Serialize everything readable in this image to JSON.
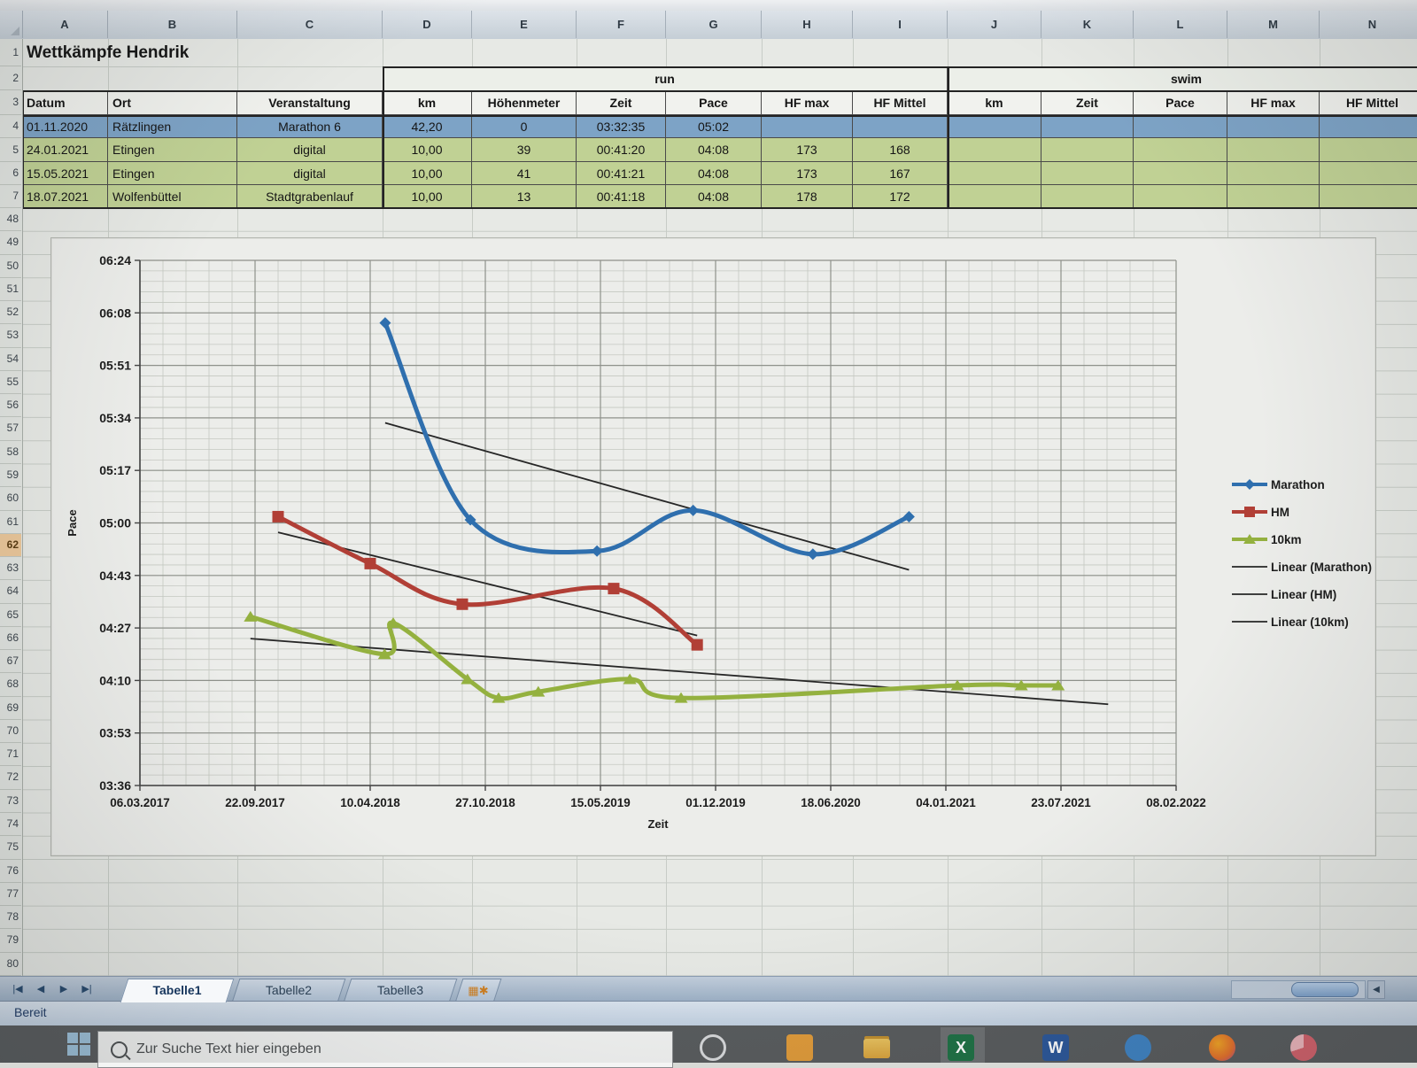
{
  "title": "Wettkämpfe Hendrik",
  "app": {
    "columns": [
      "A",
      "B",
      "C",
      "D",
      "E",
      "F",
      "G",
      "H",
      "I",
      "J",
      "K",
      "L",
      "M",
      "N"
    ],
    "row_numbers_top": [
      "1",
      "2",
      "3",
      "4",
      "5",
      "6",
      "7"
    ],
    "row_numbers_bottom": [
      "48",
      "49",
      "50",
      "51",
      "52",
      "53",
      "54",
      "55",
      "56",
      "57",
      "58",
      "59",
      "60",
      "61",
      "62",
      "63",
      "64",
      "65",
      "66",
      "67",
      "68",
      "69",
      "70",
      "71",
      "72",
      "73",
      "74",
      "75",
      "76",
      "77",
      "78",
      "79",
      "80"
    ],
    "active_row": "62",
    "sheet_tabs": [
      {
        "label": "Tabelle1",
        "active": true
      },
      {
        "label": "Tabelle2",
        "active": false
      },
      {
        "label": "Tabelle3",
        "active": false
      }
    ],
    "nav_buttons": [
      "|◀",
      "◀",
      "▶",
      "▶|"
    ],
    "scroll_left_glyph": "◀",
    "status": "Bereit"
  },
  "table": {
    "group_headers": {
      "run": "run",
      "swim": "swim"
    },
    "columns": [
      "Datum",
      "Ort",
      "Veranstaltung",
      "km",
      "Höhenmeter",
      "Zeit",
      "Pace",
      "HF max",
      "HF Mittel",
      "km",
      "Zeit",
      "Pace",
      "HF max",
      "HF Mittel"
    ],
    "rows": [
      {
        "color": "blue",
        "cells": [
          "01.11.2020",
          "Rätzlingen",
          "Marathon 6",
          "42,20",
          "0",
          "03:32:35",
          "05:02",
          "",
          "",
          "",
          "",
          "",
          "",
          ""
        ]
      },
      {
        "color": "green",
        "cells": [
          "24.01.2021",
          "Etingen",
          "digital",
          "10,00",
          "39",
          "00:41:20",
          "04:08",
          "173",
          "168",
          "",
          "",
          "",
          "",
          ""
        ]
      },
      {
        "color": "green",
        "cells": [
          "15.05.2021",
          "Etingen",
          "digital",
          "10,00",
          "41",
          "00:41:21",
          "04:08",
          "173",
          "167",
          "",
          "",
          "",
          "",
          ""
        ]
      },
      {
        "color": "green",
        "cells": [
          "18.07.2021",
          "Wolfenbüttel",
          "Stadtgrabenlauf",
          "10,00",
          "13",
          "00:41:18",
          "04:08",
          "178",
          "172",
          "",
          "",
          "",
          "",
          ""
        ]
      }
    ]
  },
  "chart_data": {
    "type": "line",
    "xlabel": "Zeit",
    "ylabel": "Pace",
    "x_tick_labels": [
      "06.03.2017",
      "22.09.2017",
      "10.04.2018",
      "27.10.2018",
      "15.05.2019",
      "01.12.2019",
      "18.06.2020",
      "04.01.2021",
      "23.07.2021",
      "08.02.2022"
    ],
    "y_tick_labels": [
      "06:24",
      "06:08",
      "05:51",
      "05:34",
      "05:17",
      "05:00",
      "04:43",
      "04:27",
      "04:10",
      "03:53",
      "03:36"
    ],
    "y_max_pace": "06:24",
    "y_min_pace": "03:36",
    "x_start_date": "06.03.2017",
    "x_end_date": "08.02.2022",
    "grid": "minor-and-major",
    "legend_position": "right",
    "series": [
      {
        "name": "Marathon",
        "color": "#2f6fae",
        "marker": "diamond",
        "smooth": true,
        "points": [
          {
            "date": "06.05.2018",
            "pace": "06:04"
          },
          {
            "date": "01.10.2018",
            "pace": "05:01"
          },
          {
            "date": "09.05.2019",
            "pace": "04:51"
          },
          {
            "date": "23.10.2019",
            "pace": "05:04"
          },
          {
            "date": "18.05.2020",
            "pace": "04:50"
          },
          {
            "date": "01.11.2020",
            "pace": "05:02"
          }
        ]
      },
      {
        "name": "HM",
        "color": "#b13f36",
        "marker": "square",
        "smooth": true,
        "points": [
          {
            "date": "01.11.2017",
            "pace": "05:02"
          },
          {
            "date": "10.04.2018",
            "pace": "04:47"
          },
          {
            "date": "17.09.2018",
            "pace": "04:34"
          },
          {
            "date": "07.06.2019",
            "pace": "04:39"
          },
          {
            "date": "30.10.2019",
            "pace": "04:21"
          }
        ]
      },
      {
        "name": "10km",
        "color": "#94b13f",
        "marker": "triangle",
        "smooth": true,
        "points": [
          {
            "date": "14.09.2017",
            "pace": "04:30"
          },
          {
            "date": "05.05.2018",
            "pace": "04:18"
          },
          {
            "date": "20.05.2018",
            "pace": "04:28"
          },
          {
            "date": "26.09.2018",
            "pace": "04:10"
          },
          {
            "date": "19.11.2018",
            "pace": "04:04"
          },
          {
            "date": "27.01.2019",
            "pace": "04:06"
          },
          {
            "date": "05.07.2019",
            "pace": "04:10"
          },
          {
            "date": "02.10.2019",
            "pace": "04:04"
          },
          {
            "date": "24.01.2021",
            "pace": "04:08"
          },
          {
            "date": "15.05.2021",
            "pace": "04:08"
          },
          {
            "date": "18.07.2021",
            "pace": "04:08"
          }
        ]
      }
    ],
    "trendlines": [
      {
        "name": "Linear (Marathon)",
        "color": "#262626",
        "start": {
          "date": "06.05.2018",
          "pace": "05:32"
        },
        "end": {
          "date": "01.11.2020",
          "pace": "04:45"
        }
      },
      {
        "name": "Linear (HM)",
        "color": "#262626",
        "start": {
          "date": "01.11.2017",
          "pace": "04:57"
        },
        "end": {
          "date": "30.10.2019",
          "pace": "04:24"
        }
      },
      {
        "name": "Linear (10km)",
        "color": "#262626",
        "start": {
          "date": "14.09.2017",
          "pace": "04:23"
        },
        "end": {
          "date": "13.10.2021",
          "pace": "04:02"
        }
      }
    ],
    "legend": [
      "Marathon",
      "HM",
      "10km",
      "Linear (Marathon)",
      "Linear (HM)",
      "Linear (10km)"
    ]
  },
  "taskbar": {
    "search_placeholder": "Zur Suche Text hier eingeben",
    "icons": [
      {
        "name": "start",
        "color": "#9fc3dc"
      },
      {
        "name": "cortana",
        "color": "#d8dadc"
      },
      {
        "name": "mail",
        "color": "#e09b3a"
      },
      {
        "name": "file-explorer",
        "color": "#d9a33c"
      },
      {
        "name": "excel",
        "color": "#1e7145"
      },
      {
        "name": "word",
        "color": "#2b579a"
      },
      {
        "name": "edge",
        "color": "#3f83c4"
      },
      {
        "name": "firefox",
        "color": "#e8702a"
      },
      {
        "name": "media",
        "color": "#d6626c"
      }
    ]
  }
}
